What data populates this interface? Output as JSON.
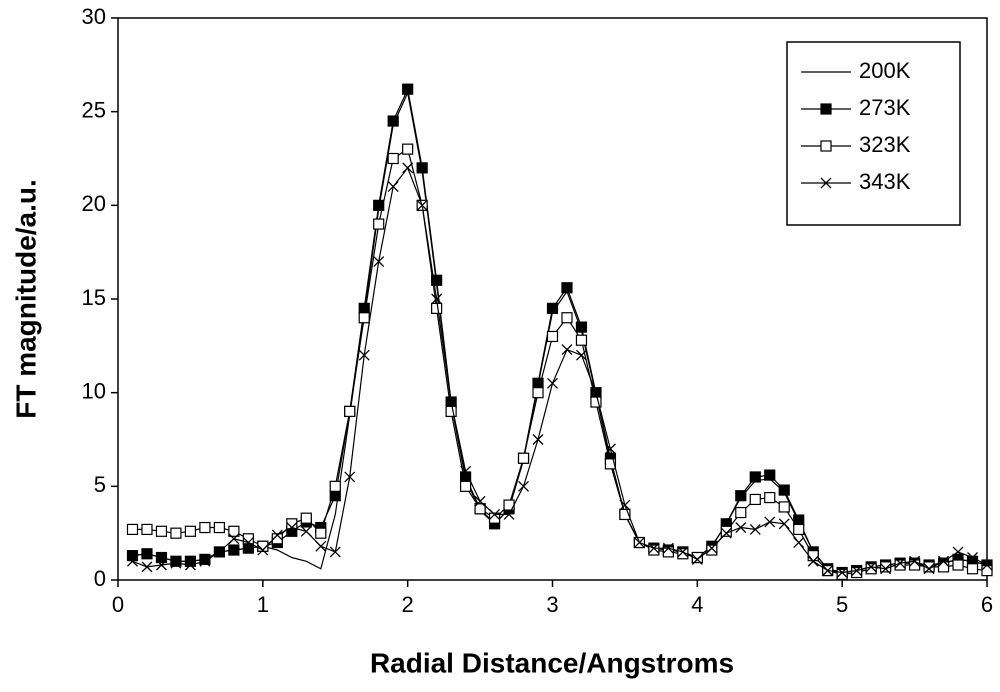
{
  "chart_data": {
    "type": "line",
    "x_label": "Radial Distance/Angstroms",
    "y_label": "FT magnitude/a.u.",
    "x": [
      0.1,
      0.2,
      0.3,
      0.4,
      0.5,
      0.6,
      0.7,
      0.8,
      0.9,
      1.0,
      1.1,
      1.2,
      1.3,
      1.4,
      1.5,
      1.6,
      1.7,
      1.8,
      1.9,
      2.0,
      2.1,
      2.2,
      2.3,
      2.4,
      2.5,
      2.6,
      2.7,
      2.8,
      2.9,
      3.0,
      3.1,
      3.2,
      3.3,
      3.4,
      3.5,
      3.6,
      3.7,
      3.8,
      3.9,
      4.0,
      4.1,
      4.2,
      4.3,
      4.4,
      4.5,
      4.6,
      4.7,
      4.8,
      4.9,
      5.0,
      5.1,
      5.2,
      5.3,
      5.4,
      5.5,
      5.6,
      5.7,
      5.8,
      5.9,
      6.0
    ],
    "series": [
      {
        "name": "200K",
        "color": "#000000",
        "marker": "none",
        "values": [
          1.3,
          1.4,
          1.2,
          1.0,
          1.0,
          1.1,
          1.5,
          1.6,
          1.7,
          1.8,
          1.6,
          1.2,
          1.0,
          0.6,
          3.5,
          8.8,
          14.2,
          19.8,
          24.3,
          26.0,
          21.8,
          15.8,
          9.4,
          5.4,
          3.7,
          3.0,
          3.8,
          6.4,
          10.4,
          14.3,
          15.4,
          13.3,
          9.9,
          6.4,
          3.5,
          2.0,
          1.7,
          1.6,
          1.5,
          1.2,
          1.8,
          3.0,
          4.4,
          5.3,
          5.4,
          4.7,
          3.1,
          1.5,
          0.6,
          0.4,
          0.5,
          0.7,
          0.8,
          0.9,
          0.9,
          0.8,
          0.9,
          1.1,
          1.0,
          0.8
        ]
      },
      {
        "name": "273K",
        "color": "#000000",
        "marker": "square-filled",
        "values": [
          1.3,
          1.4,
          1.2,
          1.0,
          1.0,
          1.1,
          1.5,
          1.6,
          1.7,
          1.8,
          2.0,
          2.6,
          3.1,
          2.8,
          4.5,
          9.0,
          14.5,
          20.0,
          24.5,
          26.2,
          22.0,
          16.0,
          9.5,
          5.5,
          3.8,
          3.0,
          3.8,
          6.5,
          10.5,
          14.5,
          15.6,
          13.5,
          10.0,
          6.5,
          3.5,
          2.0,
          1.7,
          1.6,
          1.5,
          1.2,
          1.8,
          3.0,
          4.5,
          5.5,
          5.6,
          4.8,
          3.2,
          1.5,
          0.6,
          0.4,
          0.5,
          0.7,
          0.8,
          0.9,
          0.9,
          0.8,
          0.9,
          1.1,
          1.0,
          0.8
        ]
      },
      {
        "name": "323K",
        "color": "#000000",
        "marker": "square-open",
        "values": [
          2.7,
          2.7,
          2.6,
          2.5,
          2.6,
          2.8,
          2.8,
          2.6,
          2.2,
          1.8,
          2.2,
          3.0,
          3.3,
          2.5,
          5.0,
          9.0,
          14.0,
          19.0,
          22.5,
          23.0,
          20.0,
          14.5,
          9.0,
          5.0,
          3.8,
          3.3,
          4.0,
          6.5,
          10.0,
          13.0,
          14.0,
          12.8,
          9.5,
          6.2,
          3.5,
          2.0,
          1.6,
          1.5,
          1.4,
          1.2,
          1.6,
          2.6,
          3.6,
          4.3,
          4.4,
          3.9,
          2.7,
          1.3,
          0.5,
          0.3,
          0.4,
          0.6,
          0.7,
          0.8,
          0.8,
          0.7,
          0.7,
          0.8,
          0.6,
          0.5
        ]
      },
      {
        "name": "343K",
        "color": "#000000",
        "marker": "x",
        "values": [
          1.0,
          0.7,
          0.8,
          0.9,
          0.8,
          1.0,
          1.5,
          2.2,
          2.0,
          1.6,
          2.4,
          2.8,
          2.6,
          1.8,
          1.5,
          5.5,
          12.0,
          17.0,
          21.0,
          22.0,
          20.0,
          15.0,
          9.5,
          5.8,
          4.2,
          3.5,
          3.5,
          5.0,
          7.5,
          10.5,
          12.3,
          12.0,
          10.0,
          7.0,
          4.0,
          2.0,
          1.7,
          1.7,
          1.5,
          1.1,
          1.7,
          2.5,
          2.8,
          2.7,
          3.1,
          3.0,
          2.0,
          1.0,
          0.5,
          0.4,
          0.5,
          0.7,
          0.6,
          0.9,
          1.0,
          0.6,
          1.0,
          1.5,
          1.2,
          0.8
        ]
      }
    ],
    "xlim": [
      0,
      6
    ],
    "ylim": [
      0,
      30
    ],
    "xticks": [
      0,
      1,
      2,
      3,
      4,
      5,
      6
    ],
    "yticks": [
      0,
      5,
      10,
      15,
      20,
      25,
      30
    ],
    "grid": false,
    "legend": "upper right"
  }
}
